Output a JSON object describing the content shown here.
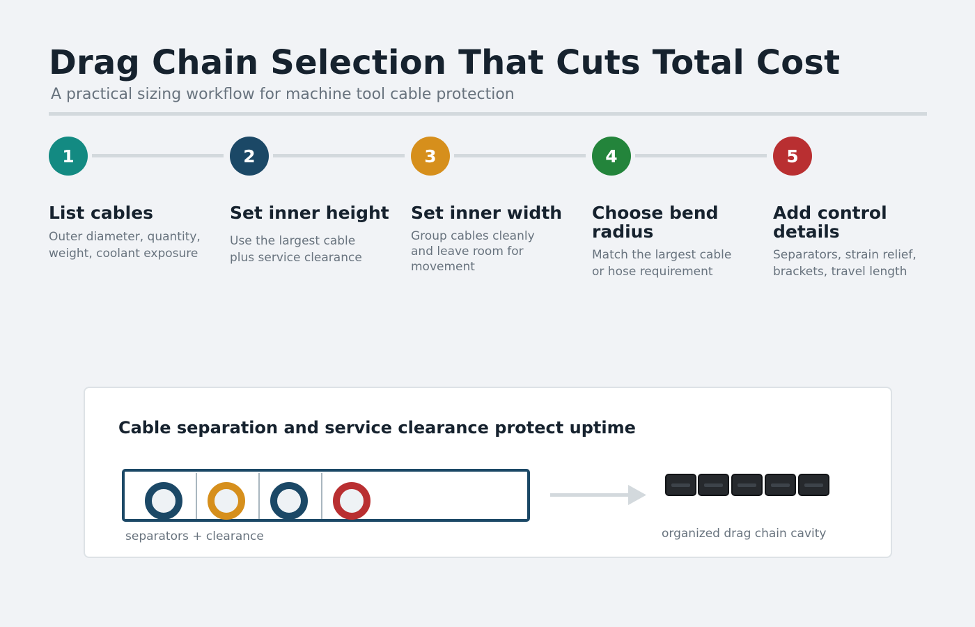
{
  "header": {
    "title": "Drag Chain Selection That Cuts Total Cost",
    "subtitle": "A practical sizing workflow for machine tool cable protection"
  },
  "steps": [
    {
      "number": "1",
      "title": "List cables",
      "description": "Outer diameter, quantity, weight, coolant exposure",
      "color": "#138a82"
    },
    {
      "number": "2",
      "title": "Set inner height",
      "description": "Use the largest cable plus service clearance",
      "color": "#1b4866"
    },
    {
      "number": "3",
      "title": "Set inner width",
      "description": "Group cables cleanly and leave room for movement",
      "color": "#d68f1c"
    },
    {
      "number": "4",
      "title": "Choose bend radius",
      "description": "Match the largest cable or hose requirement",
      "color": "#23843b"
    },
    {
      "number": "5",
      "title": "Add control details",
      "description": "Separators, strain relief, brackets, travel length",
      "color": "#b92f31"
    }
  ],
  "panel": {
    "title": "Cable separation and service clearance protect uptime",
    "left_caption": "separators + clearance",
    "right_caption": "organized drag chain cavity",
    "cables": [
      {
        "color": "#1b4866"
      },
      {
        "color": "#d68f1c"
      },
      {
        "color": "#1b4866"
      },
      {
        "color": "#b92f31"
      }
    ],
    "chain_link_count": 5
  }
}
